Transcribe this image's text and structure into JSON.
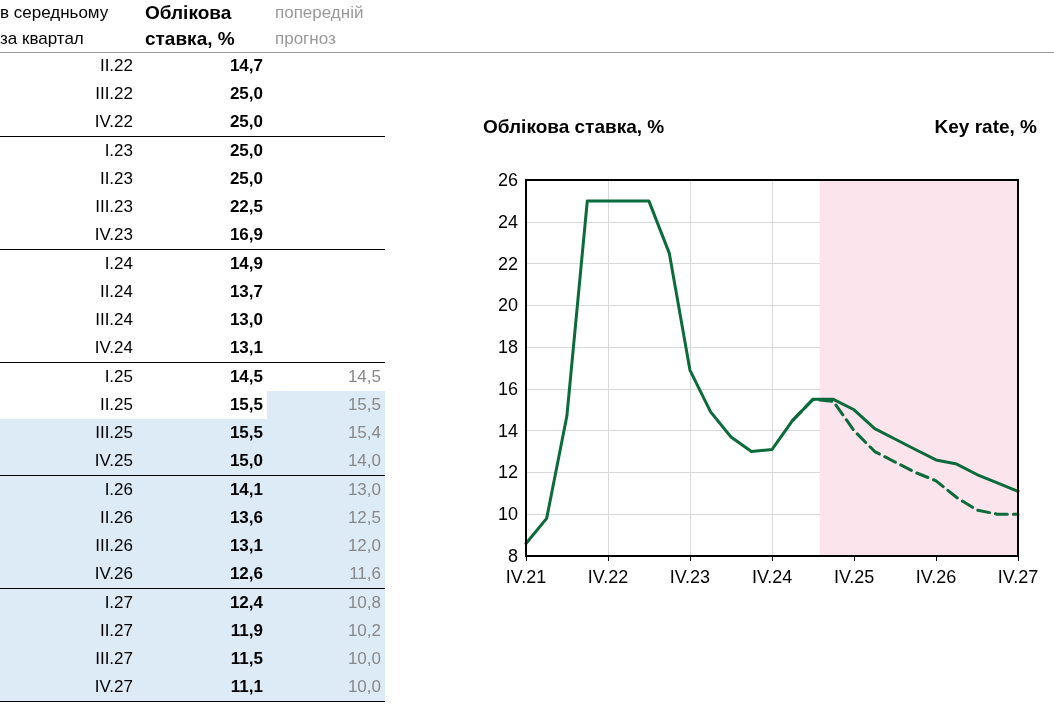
{
  "chart_data": [
    {
      "type": "heatmap",
      "ylabel": "в середньому за квартал",
      "categories": [
        "Облікова ставка, %",
        "попередній прогноз"
      ],
      "y_categories": [
        "II.22",
        "III.22",
        "IV.22",
        "I.23",
        "II.23",
        "III.23",
        "IV.23",
        "I.24",
        "II.24",
        "III.24",
        "IV.24",
        "I.25",
        "II.25",
        "III.25",
        "IV.25",
        "I.26",
        "II.26",
        "III.26",
        "IV.26",
        "I.27",
        "II.27",
        "III.27",
        "IV.27"
      ],
      "cells": [
        [
          14.7,
          null
        ],
        [
          25.0,
          null
        ],
        [
          25.0,
          null
        ],
        [
          25.0,
          null
        ],
        [
          25.0,
          null
        ],
        [
          22.5,
          null
        ],
        [
          16.9,
          null
        ],
        [
          14.9,
          null
        ],
        [
          13.7,
          null
        ],
        [
          13.0,
          null
        ],
        [
          13.1,
          null
        ],
        [
          14.5,
          14.5
        ],
        [
          15.5,
          15.5
        ],
        [
          15.5,
          15.4
        ],
        [
          15.0,
          14.0
        ],
        [
          14.1,
          13.0
        ],
        [
          13.6,
          12.5
        ],
        [
          13.1,
          12.0
        ],
        [
          12.6,
          11.6
        ],
        [
          12.4,
          10.8
        ],
        [
          11.9,
          10.2
        ],
        [
          11.5,
          10.0
        ],
        [
          11.1,
          10.0
        ]
      ],
      "cell_labels": [
        [
          "14,7",
          null
        ],
        [
          "25,0",
          null
        ],
        [
          "25,0",
          null
        ],
        [
          "25,0",
          null
        ],
        [
          "25,0",
          null
        ],
        [
          "22,5",
          null
        ],
        [
          "16,9",
          null
        ],
        [
          "14,9",
          null
        ],
        [
          "13,7",
          null
        ],
        [
          "13,0",
          null
        ],
        [
          "13,1",
          null
        ],
        [
          "14,5",
          "14,5"
        ],
        [
          "15,5",
          "15,5"
        ],
        [
          "15,5",
          "15,4"
        ],
        [
          "15,0",
          "14,0"
        ],
        [
          "14,1",
          "13,0"
        ],
        [
          "13,6",
          "12,5"
        ],
        [
          "13,1",
          "12,0"
        ],
        [
          "12,6",
          "11,6"
        ],
        [
          "12,4",
          "10,8"
        ],
        [
          "11,9",
          "10,2"
        ],
        [
          "11,5",
          "10,0"
        ],
        [
          "11,1",
          "10,0"
        ]
      ]
    },
    {
      "type": "line",
      "title": "Облікова ставка, %",
      "subtitle": "Key rate, %",
      "x": [
        "2021-10",
        "2022-01",
        "2022-04",
        "2022-07",
        "2022-10",
        "2023-01",
        "2023-04",
        "2023-07",
        "2023-10",
        "2024-01",
        "2024-04",
        "2024-07",
        "2024-10",
        "2025-01",
        "2025-04",
        "2025-07",
        "2025-10",
        "2026-01",
        "2026-04",
        "2026-07",
        "2026-10",
        "2027-01",
        "2027-04",
        "2027-07",
        "2027-10"
      ],
      "series": [
        {
          "color": "#0b6b3a",
          "line_style": "solid",
          "values": [
            8.6,
            9.8,
            14.7,
            25.0,
            25.0,
            25.0,
            25.0,
            22.5,
            16.9,
            14.9,
            13.7,
            13.0,
            13.1,
            14.5,
            15.5,
            15.5,
            15.0,
            14.1,
            13.6,
            13.1,
            12.6,
            12.4,
            11.9,
            11.5,
            11.1
          ]
        },
        {
          "color": "#0b6b3a",
          "line_style": "dashed",
          "values": [
            null,
            null,
            null,
            null,
            null,
            null,
            null,
            null,
            null,
            null,
            null,
            null,
            null,
            14.5,
            15.5,
            15.4,
            14.0,
            13.0,
            12.5,
            12.0,
            11.6,
            10.8,
            10.2,
            10.0,
            10.0
          ]
        }
      ],
      "xlim": [
        "2021-10",
        "2027-10"
      ],
      "xticks": [
        {
          "value": "2021-10",
          "label": "IV.21"
        },
        {
          "value": "2022-10",
          "label": "IV.22"
        },
        {
          "value": "2023-10",
          "label": "IV.23"
        },
        {
          "value": "2024-10",
          "label": "IV.24"
        },
        {
          "value": "2025-10",
          "label": "IV.25"
        },
        {
          "value": "2026-10",
          "label": "IV.26"
        },
        {
          "value": "2027-10",
          "label": "IV.27"
        }
      ],
      "ylim": [
        8,
        26
      ],
      "yticks": [
        8,
        10,
        12,
        14,
        16,
        18,
        20,
        22,
        24,
        26
      ],
      "grid": true,
      "marker": "none",
      "bands": [
        {
          "axis": "x",
          "from": "2025-05",
          "to": "2027-10",
          "color": "#fce4ec"
        }
      ]
    }
  ]
}
